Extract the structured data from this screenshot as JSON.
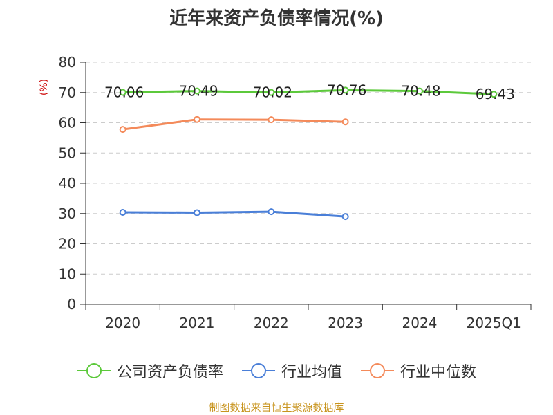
{
  "chart_data": {
    "type": "line",
    "title": "近年来资产负债率情况(%)",
    "ylabel": "(%)",
    "ylim": [
      0,
      80
    ],
    "yticks": [
      "0",
      "10",
      "20",
      "30",
      "40",
      "50",
      "60",
      "70",
      "80"
    ],
    "categories": [
      "2020",
      "2021",
      "2022",
      "2023",
      "2024",
      "2025Q1"
    ],
    "grid": true,
    "legend_position": "bottom",
    "series": [
      {
        "name": "公司资产负债率",
        "color": "#5cc93b",
        "values": [
          70.06,
          70.49,
          70.02,
          70.76,
          70.48,
          69.43
        ],
        "labels": [
          "70.06",
          "70.49",
          "70.02",
          "70.76",
          "70.48",
          "69.43"
        ]
      },
      {
        "name": "行业均值",
        "color": "#4a7fd8",
        "values": [
          30.4,
          30.3,
          30.6,
          29.0,
          null,
          null
        ]
      },
      {
        "name": "行业中位数",
        "color": "#f48a5a",
        "values": [
          57.8,
          61.1,
          61.0,
          60.3,
          null,
          null
        ]
      }
    ],
    "source": "制图数据来自恒生聚源数据库"
  }
}
